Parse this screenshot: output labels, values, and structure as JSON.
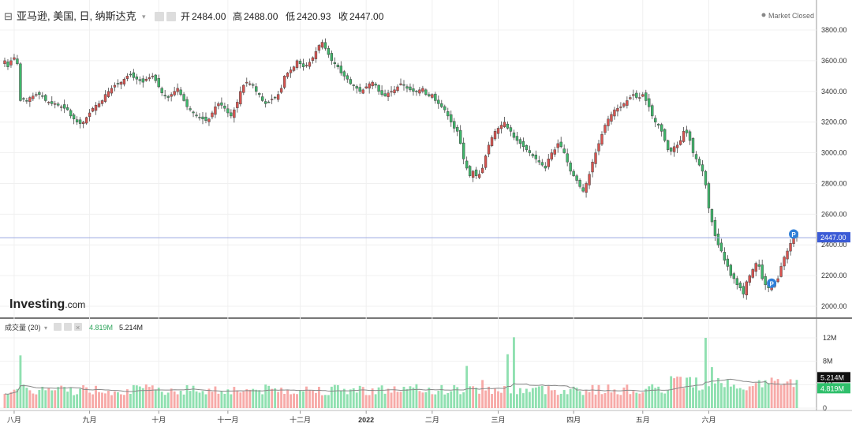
{
  "header": {
    "menu_icon": "collapse-square-icon",
    "title": "亚马逊, 美国, 日, 纳斯达克",
    "open_label": "开",
    "open_value": "2484.00",
    "high_label": "高",
    "high_value": "2488.00",
    "low_label": "低",
    "low_value": "2420.93",
    "close_label": "收",
    "close_value": "2447.00",
    "status": "Market Closed"
  },
  "logo": {
    "word": "Investing",
    "suffix": ".com"
  },
  "volume_header": {
    "label": "成交量 (20)",
    "value_green": "4.819M",
    "value_black": "5.214M"
  },
  "colors": {
    "up": "#d9534f",
    "down": "#3fb76b",
    "vol_up": "#f7aaa8",
    "vol_down": "#8fe0b0",
    "price_line": "#3b5bd6",
    "grid": "#f0f0f0",
    "axis_text": "#333333"
  },
  "chart_data": [
    {
      "type": "candlestick",
      "x_tick_labels": [
        "八月",
        "九月",
        "十月",
        "十一月",
        "十二月",
        "2022",
        "二月",
        "三月",
        "四月",
        "五月",
        "六月"
      ],
      "y_tick_labels": [
        "3800.00",
        "3600.00",
        "3400.00",
        "3200.00",
        "3000.00",
        "2800.00",
        "2600.00",
        "2400.00",
        "2200.00",
        "2000.00"
      ],
      "ylim": [
        1940,
        3890
      ],
      "last_price": 2447.0,
      "last_price_label": "2447.00",
      "markers": [
        {
          "label": "P",
          "date_index": 244
        },
        {
          "label": "P",
          "date_index": 251
        }
      ],
      "close": [
        3600,
        3560,
        3600,
        3620,
        3580,
        3340,
        3350,
        3340,
        3360,
        3370,
        3380,
        3380,
        3370,
        3340,
        3330,
        3320,
        3320,
        3310,
        3300,
        3290,
        3280,
        3240,
        3220,
        3200,
        3190,
        3200,
        3230,
        3260,
        3290,
        3310,
        3320,
        3340,
        3380,
        3400,
        3420,
        3440,
        3450,
        3460,
        3480,
        3500,
        3510,
        3490,
        3480,
        3470,
        3460,
        3480,
        3490,
        3500,
        3470,
        3430,
        3390,
        3370,
        3360,
        3380,
        3400,
        3420,
        3380,
        3340,
        3300,
        3280,
        3260,
        3240,
        3230,
        3220,
        3210,
        3220,
        3260,
        3300,
        3320,
        3310,
        3290,
        3260,
        3240,
        3280,
        3330,
        3400,
        3440,
        3460,
        3450,
        3440,
        3400,
        3380,
        3340,
        3320,
        3330,
        3350,
        3360,
        3380,
        3420,
        3500,
        3520,
        3540,
        3560,
        3600,
        3580,
        3560,
        3570,
        3590,
        3620,
        3660,
        3700,
        3720,
        3680,
        3640,
        3600,
        3580,
        3560,
        3520,
        3500,
        3480,
        3450,
        3440,
        3420,
        3400,
        3410,
        3430,
        3450,
        3460,
        3440,
        3400,
        3380,
        3370,
        3390,
        3400,
        3410,
        3430,
        3450,
        3440,
        3420,
        3410,
        3400,
        3400,
        3410,
        3420,
        3380,
        3370,
        3380,
        3340,
        3320,
        3300,
        3280,
        3240,
        3200,
        3160,
        3140,
        3060,
        2960,
        2900,
        2850,
        2880,
        2850,
        2860,
        2900,
        2980,
        3050,
        3100,
        3140,
        3160,
        3180,
        3200,
        3160,
        3140,
        3100,
        3080,
        3060,
        3040,
        3020,
        3000,
        2980,
        2960,
        2940,
        2920,
        2900,
        2960,
        3000,
        3020,
        3060,
        3040,
        3000,
        2940,
        2880,
        2850,
        2820,
        2780,
        2750,
        2800,
        2860,
        2940,
        3000,
        3060,
        3120,
        3180,
        3220,
        3250,
        3280,
        3290,
        3300,
        3320,
        3340,
        3360,
        3380,
        3360,
        3360,
        3380,
        3340,
        3300,
        3240,
        3200,
        3180,
        3140,
        3080,
        3020,
        3010,
        3040,
        3050,
        3080,
        3140,
        3130,
        3080,
        3000,
        2960,
        2920,
        2880,
        2790,
        2640,
        2550,
        2460,
        2400,
        2360,
        2300,
        2260,
        2200,
        2180,
        2140,
        2120,
        2080,
        2160,
        2200,
        2240,
        2280,
        2260,
        2180,
        2140,
        2120,
        2140,
        2160,
        2180,
        2260,
        2320,
        2360,
        2410,
        2460,
        2447
      ]
    },
    {
      "type": "bar",
      "title": "成交量 (20)",
      "y_tick_labels": [
        "12M",
        "8M",
        "4M",
        "0"
      ],
      "ylim": [
        0,
        13.5
      ],
      "current_labels": [
        "5.214M",
        "4.819M"
      ],
      "ma_period": 20
    }
  ]
}
